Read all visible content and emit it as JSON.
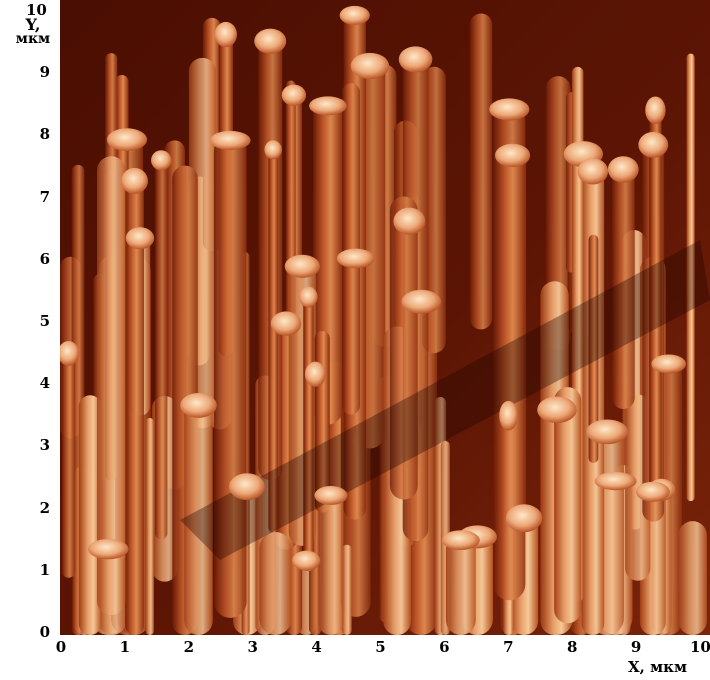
{
  "image": {
    "description_icon": "afm-surface-image",
    "palette": [
      "#2a0600",
      "#7a2208",
      "#b4451c",
      "#d9763e",
      "#f0b07a",
      "#fde8c8"
    ]
  },
  "y_axis": {
    "title_line1": "Y,",
    "title_line2": "мкм",
    "ticks": [
      "0",
      "1",
      "2",
      "3",
      "4",
      "5",
      "6",
      "7",
      "8",
      "9",
      "10"
    ]
  },
  "x_axis": {
    "title": "X, мкм",
    "ticks": [
      "0",
      "1",
      "2",
      "3",
      "4",
      "5",
      "6",
      "7",
      "8",
      "9",
      "10"
    ]
  }
}
